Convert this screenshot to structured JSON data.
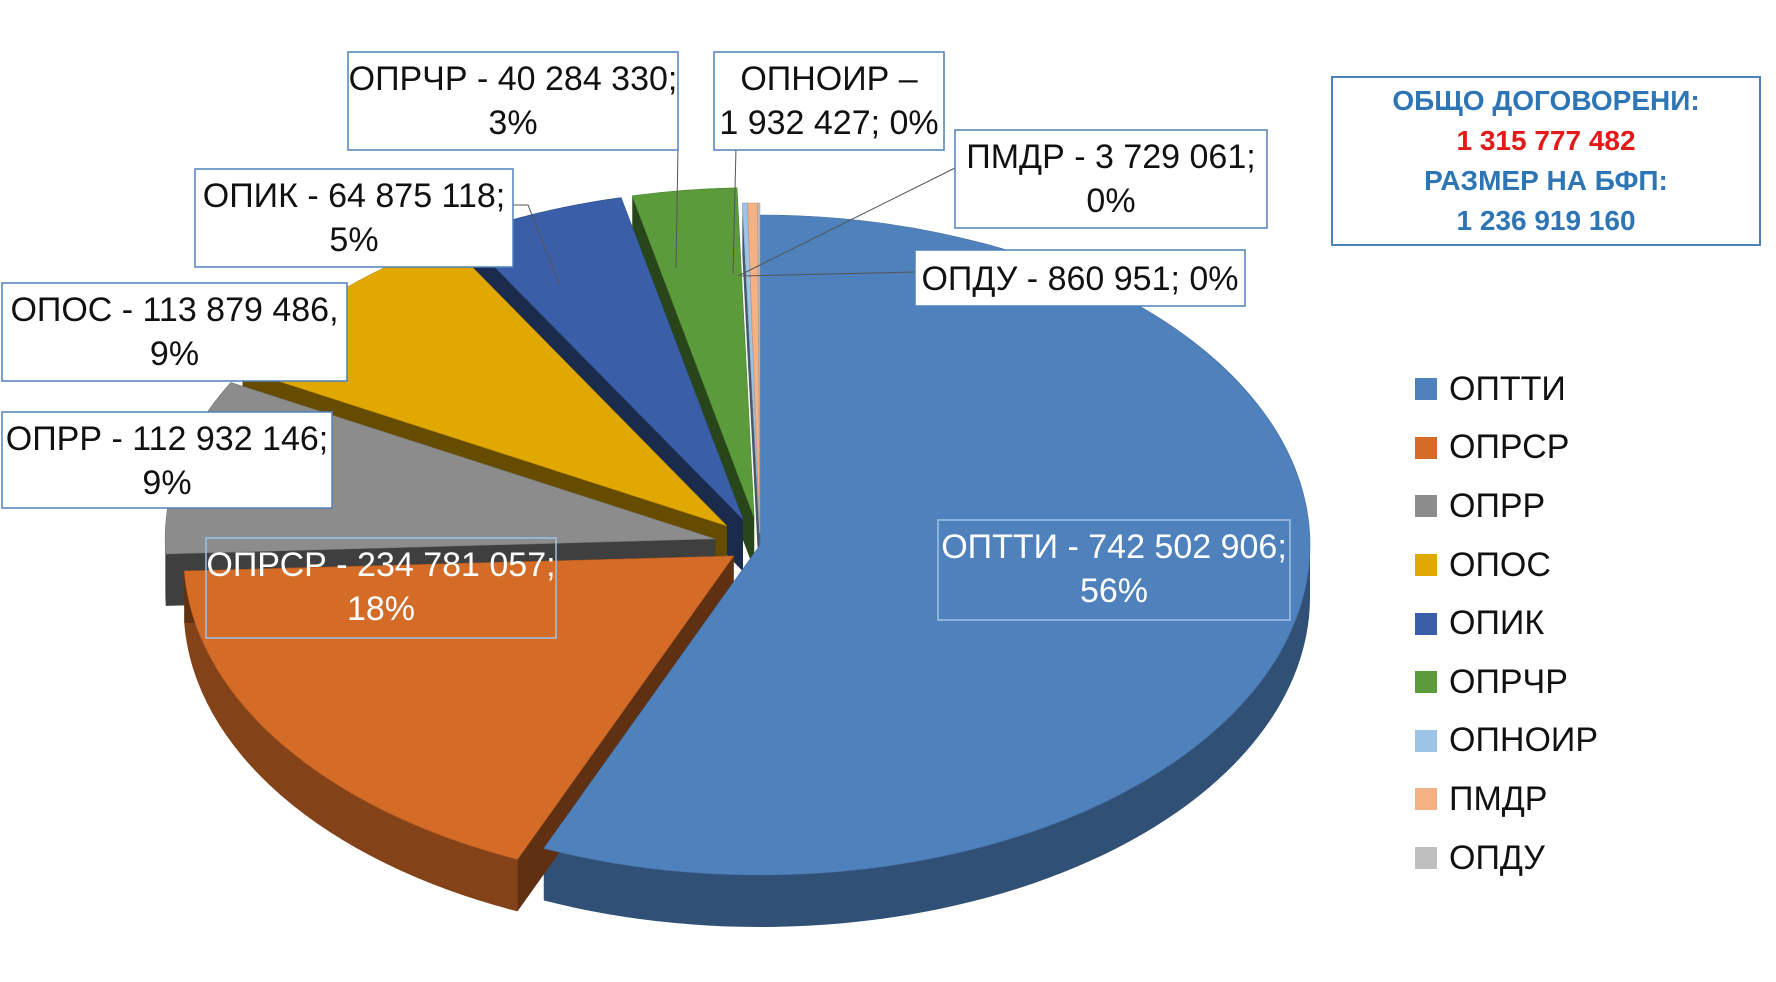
{
  "chart_data": {
    "type": "pie",
    "categories": [
      "ОПТТИ",
      "ОПРСР",
      "ОПРР",
      "ОПОС",
      "ОПИК",
      "ОПРЧР",
      "ОПНОИР",
      "ПМДР",
      "ОПДУ"
    ],
    "values": [
      742502906,
      234781057,
      112932146,
      113879486,
      64875118,
      40284330,
      1932427,
      3729061,
      860951
    ],
    "colors": [
      "#4f81bd",
      "#d46b27",
      "#8c8c8c",
      "#e0a800",
      "#3a5fa8",
      "#5b9b3c",
      "#9dc3e6",
      "#f4b183",
      "#bfbfbf"
    ],
    "data_labels": [
      {
        "line1": "ОПТТИ - 742 502 906;",
        "line2": "56%"
      },
      {
        "line1": "ОПРСР - 234 781 057;",
        "line2": "18%"
      },
      {
        "line1": "ОПРР - 112 932 146;",
        "line2": "9%"
      },
      {
        "line1": "ОПОС - 113 879 486,",
        "line2": "9%"
      },
      {
        "line1": "ОПИК - 64 875 118;",
        "line2": "5%"
      },
      {
        "line1": "ОПРЧР - 40 284 330;",
        "line2": "3%"
      },
      {
        "line1": "ОПНОИР –",
        "line2": "1 932 427; 0%"
      },
      {
        "line1": "ПМДР - 3 729 061;",
        "line2": "0%"
      },
      {
        "line1": "ОПДУ - 860 951; 0%",
        "line2": ""
      }
    ],
    "legend": [
      "ОПТТИ",
      "ОПРСР",
      "ОПРР",
      "ОПОС",
      "ОПИК",
      "ОПРЧР",
      "ОПНОИР",
      "ПМДР",
      "ОПДУ"
    ],
    "legend_position": "right"
  },
  "info": {
    "line1": "ОБЩО ДОГОВОРЕНИ:",
    "line2": "1 315 777 482",
    "line3": "РАЗМЕР НА БФП:",
    "line4": "1 236 919 160"
  }
}
